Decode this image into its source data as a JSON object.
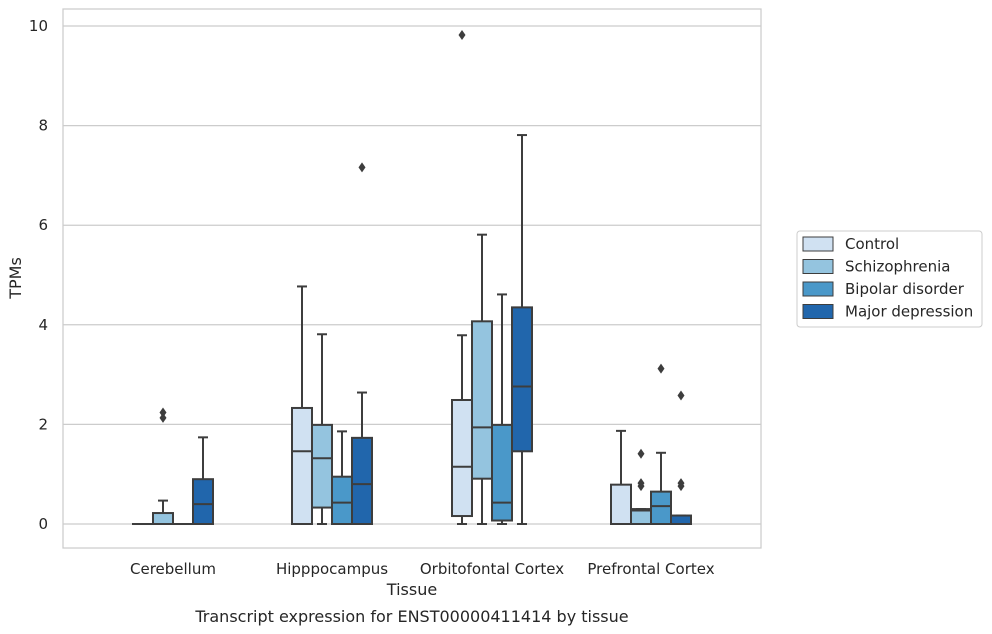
{
  "chart_data": {
    "type": "box",
    "title": "",
    "caption": "Transcript expression for ENST00000411414 by tissue",
    "xlabel": "Tissue",
    "ylabel": "TPMs",
    "categories": [
      "Cerebellum",
      "Hipppocampus",
      "Orbitofontal Cortex",
      "Prefrontal Cortex"
    ],
    "ylim": [
      -0.45,
      10.35
    ],
    "yticks": [
      0,
      2,
      4,
      6,
      8,
      10
    ],
    "grid": true,
    "legend_position": "right",
    "series": [
      {
        "name": "Control",
        "color": "#d0e1f2",
        "boxes": [
          {
            "min": 0,
            "q1": 0,
            "median": 0,
            "q3": 0,
            "max": 0,
            "outliers": []
          },
          {
            "min": 0,
            "q1": 0,
            "median": 1.46,
            "q3": 2.33,
            "max": 4.77,
            "outliers": []
          },
          {
            "min": 0,
            "q1": 0.16,
            "median": 1.15,
            "q3": 2.49,
            "max": 3.79,
            "outliers": [
              9.82
            ]
          },
          {
            "min": 0,
            "q1": 0,
            "median": 0,
            "q3": 0.79,
            "max": 1.87,
            "outliers": []
          }
        ]
      },
      {
        "name": "Schizophrenia",
        "color": "#94c4df",
        "boxes": [
          {
            "min": 0,
            "q1": 0,
            "median": 0,
            "q3": 0.22,
            "max": 0.47,
            "outliers": [
              2.13,
              2.24
            ]
          },
          {
            "min": 0,
            "q1": 0.33,
            "median": 1.32,
            "q3": 1.99,
            "max": 3.81,
            "outliers": []
          },
          {
            "min": 0,
            "q1": 0.91,
            "median": 1.94,
            "q3": 4.07,
            "max": 5.81,
            "outliers": []
          },
          {
            "min": 0,
            "q1": 0,
            "median": 0.27,
            "q3": 0.3,
            "max": 0.3,
            "outliers": [
              0.76,
              0.82,
              1.41
            ]
          }
        ]
      },
      {
        "name": "Bipolar disorder",
        "color": "#4a98c9",
        "boxes": [
          {
            "min": 0,
            "q1": 0,
            "median": 0,
            "q3": 0,
            "max": 0,
            "outliers": []
          },
          {
            "min": 0,
            "q1": 0,
            "median": 0.43,
            "q3": 0.95,
            "max": 1.86,
            "outliers": []
          },
          {
            "min": 0,
            "q1": 0.07,
            "median": 0.43,
            "q3": 1.99,
            "max": 4.61,
            "outliers": []
          },
          {
            "min": 0,
            "q1": 0,
            "median": 0.36,
            "q3": 0.65,
            "max": 1.43,
            "outliers": [
              3.12
            ]
          }
        ]
      },
      {
        "name": "Major depression",
        "color": "#2166ac",
        "boxes": [
          {
            "min": 0,
            "q1": 0,
            "median": 0.4,
            "q3": 0.9,
            "max": 1.74,
            "outliers": []
          },
          {
            "min": 0,
            "q1": 0,
            "median": 0.8,
            "q3": 1.73,
            "max": 2.64,
            "outliers": [
              7.16
            ]
          },
          {
            "min": 0,
            "q1": 1.46,
            "median": 2.76,
            "q3": 4.35,
            "max": 7.81,
            "outliers": []
          },
          {
            "min": 0,
            "q1": 0,
            "median": 0,
            "q3": 0.17,
            "max": 0.17,
            "outliers": [
              0.76,
              0.82,
              2.58
            ]
          }
        ]
      }
    ]
  }
}
